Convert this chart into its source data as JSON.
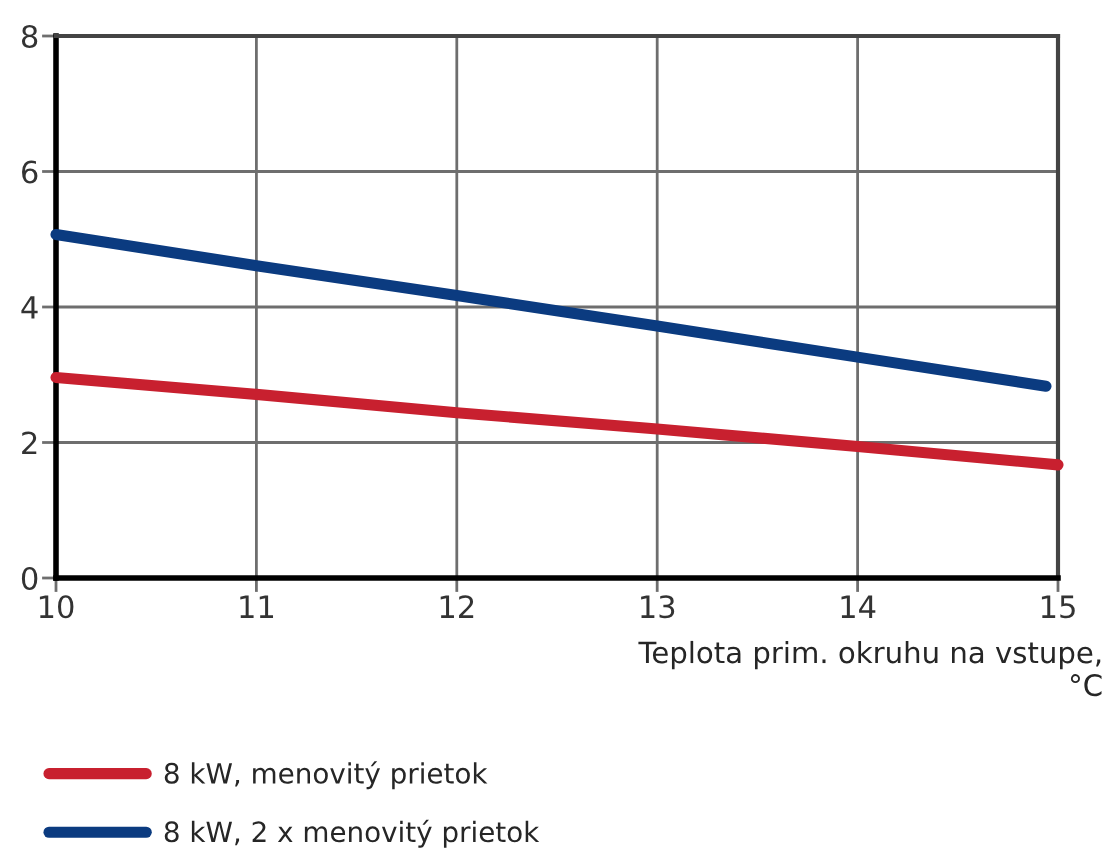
{
  "chart_data": {
    "type": "line",
    "xlabel": "Teplota prim. okruhu na vstupe,\n°C",
    "x": [
      10,
      11,
      12,
      13,
      14,
      15
    ],
    "series": [
      {
        "name": "8 kW, menovitý prietok",
        "color": "#c8202f",
        "values": [
          2.96,
          2.71,
          2.44,
          2.2,
          1.94,
          1.67
        ]
      },
      {
        "name": "8 kW, 2 x menovitý prietok",
        "color": "#0b3b80",
        "x": [
          10,
          11,
          12,
          13,
          14,
          14.94
        ],
        "values": [
          5.07,
          4.61,
          4.17,
          3.72,
          3.26,
          2.83
        ]
      }
    ],
    "xlim": [
      10,
      15
    ],
    "ylim": [
      0,
      8
    ],
    "xticks": [
      10,
      11,
      12,
      13,
      14,
      15
    ],
    "yticks": [
      0,
      2,
      4,
      6,
      8
    ],
    "grid": true,
    "legend": "bottom left",
    "line_style": "solid",
    "marker": "none"
  }
}
